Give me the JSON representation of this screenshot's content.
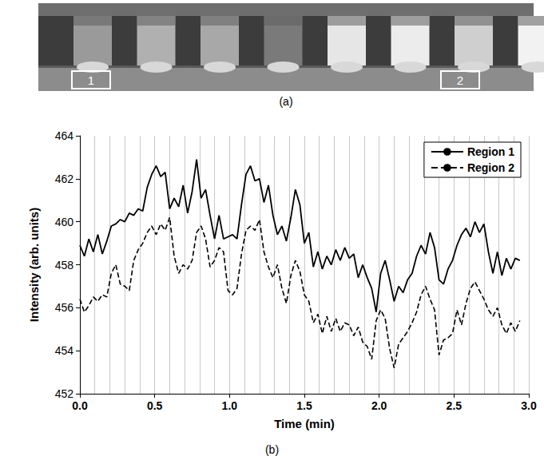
{
  "figure": {
    "panel_a": {
      "label": "(a)",
      "regions": [
        "1",
        "2"
      ]
    }
  },
  "chart_data": {
    "type": "line",
    "caption": "(b)",
    "x_label": "Time (min)",
    "y_label": "Intensity (arb. units)",
    "x": [
      0,
      0.03,
      0.06,
      0.09,
      0.12,
      0.15,
      0.18,
      0.21,
      0.24,
      0.27,
      0.3,
      0.33,
      0.36,
      0.39,
      0.42,
      0.45,
      0.48,
      0.51,
      0.54,
      0.57,
      0.6,
      0.63,
      0.66,
      0.69,
      0.72,
      0.75,
      0.78,
      0.81,
      0.84,
      0.87,
      0.9,
      0.93,
      0.96,
      0.99,
      1.02,
      1.05,
      1.08,
      1.11,
      1.14,
      1.17,
      1.2,
      1.23,
      1.26,
      1.29,
      1.32,
      1.35,
      1.38,
      1.41,
      1.44,
      1.47,
      1.5,
      1.53,
      1.56,
      1.59,
      1.62,
      1.65,
      1.68,
      1.71,
      1.74,
      1.77,
      1.8,
      1.83,
      1.86,
      1.89,
      1.92,
      1.95,
      1.98,
      2.01,
      2.04,
      2.07,
      2.1,
      2.13,
      2.16,
      2.19,
      2.22,
      2.25,
      2.28,
      2.31,
      2.34,
      2.37,
      2.4,
      2.43,
      2.46,
      2.49,
      2.52,
      2.55,
      2.58,
      2.61,
      2.64,
      2.67,
      2.7,
      2.73,
      2.76,
      2.79,
      2.82,
      2.85,
      2.88,
      2.91,
      2.94
    ],
    "series": [
      {
        "name": "Region 1",
        "color": "#000000",
        "line_style": "solid",
        "values": [
          458.9,
          458.4,
          459.2,
          458.6,
          459.4,
          458.5,
          459.1,
          459.8,
          459.9,
          460.1,
          460.0,
          460.4,
          460.3,
          460.6,
          460.5,
          461.6,
          462.2,
          462.6,
          462.1,
          462.3,
          460.6,
          461.1,
          460.7,
          461.7,
          460.4,
          461.4,
          462.9,
          461.1,
          461.5,
          460.3,
          459.2,
          460.3,
          459.2,
          459.3,
          459.4,
          459.2,
          460.8,
          462.2,
          462.6,
          461.9,
          462.0,
          460.9,
          461.7,
          460.3,
          459.4,
          459.8,
          459.1,
          460.2,
          461.5,
          460.8,
          459.0,
          459.5,
          457.9,
          458.6,
          457.8,
          458.4,
          458.0,
          458.7,
          458.2,
          458.8,
          458.3,
          458.5,
          457.4,
          458.0,
          457.4,
          456.9,
          455.8,
          457.6,
          458.2,
          457.3,
          456.3,
          457.0,
          456.7,
          457.3,
          457.6,
          458.4,
          458.9,
          458.5,
          459.5,
          458.8,
          457.3,
          457.1,
          457.8,
          458.2,
          458.9,
          459.4,
          459.7,
          459.3,
          460.0,
          459.5,
          459.9,
          458.6,
          457.6,
          458.6,
          457.5,
          458.3,
          457.8,
          458.3,
          458.2
        ]
      },
      {
        "name": "Region 2",
        "color": "#000000",
        "line_style": "dashed",
        "values": [
          456.4,
          455.8,
          456.1,
          456.5,
          456.3,
          456.6,
          456.5,
          457.6,
          458.0,
          457.1,
          457.0,
          456.8,
          458.2,
          458.7,
          459.0,
          459.5,
          459.8,
          459.4,
          459.9,
          459.6,
          460.2,
          458.4,
          457.6,
          458.0,
          457.8,
          458.2,
          459.5,
          459.8,
          459.2,
          457.9,
          458.2,
          458.8,
          458.6,
          456.8,
          456.6,
          456.9,
          458.5,
          459.6,
          459.8,
          459.6,
          460.1,
          458.6,
          457.9,
          457.4,
          458.0,
          456.9,
          456.2,
          457.5,
          458.2,
          457.7,
          456.6,
          456.3,
          455.3,
          455.7,
          454.8,
          455.6,
          454.9,
          455.5,
          454.9,
          455.3,
          455.2,
          454.7,
          455.1,
          454.4,
          454.2,
          453.6,
          455.4,
          455.9,
          455.5,
          454.1,
          453.2,
          454.3,
          454.6,
          454.9,
          455.3,
          455.8,
          456.6,
          457.0,
          456.4,
          455.9,
          453.8,
          454.5,
          454.6,
          454.8,
          455.9,
          455.2,
          456.2,
          456.9,
          457.2,
          456.8,
          456.4,
          455.9,
          455.6,
          456.0,
          455.2,
          454.8,
          455.3,
          454.9,
          455.4
        ]
      }
    ],
    "xlim": [
      0,
      3
    ],
    "xticks": [
      {
        "value": 0,
        "label": "0.0"
      },
      0.5,
      {
        "value": 1,
        "label": "1.0"
      },
      1.5,
      {
        "value": 2,
        "label": "2.0"
      },
      2.5,
      {
        "value": 3,
        "label": "3.0"
      }
    ],
    "ylim": [
      452,
      464
    ],
    "yticks": [
      452,
      454,
      456,
      458,
      460,
      462,
      464
    ],
    "grid": "x",
    "legend": "upper right"
  }
}
